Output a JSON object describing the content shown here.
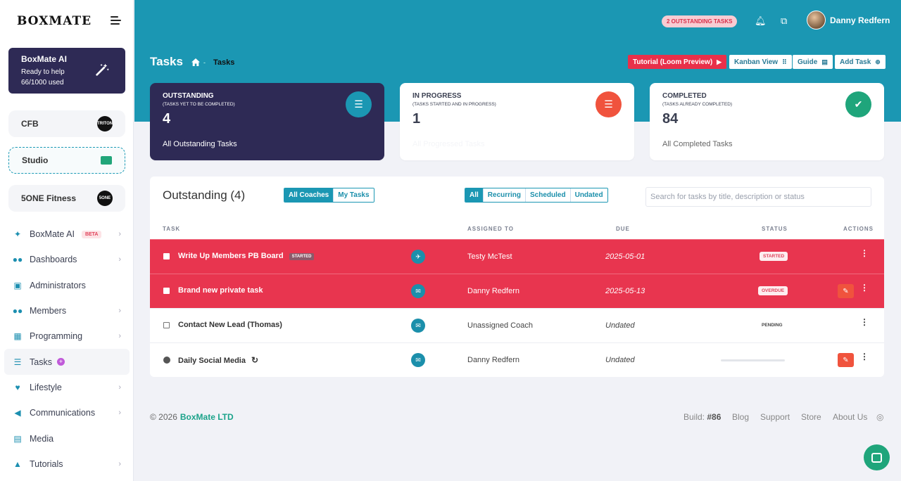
{
  "brand": "BOXMATE",
  "ai_card": {
    "title": "BoxMate AI",
    "line1": "Ready to help",
    "line2": "66/1000 used"
  },
  "gyms": [
    {
      "name": "CFB",
      "logo": "TRITON"
    },
    {
      "name": "Studio"
    },
    {
      "name": "5ONE Fitness",
      "logo": "5ONE"
    }
  ],
  "nav": [
    {
      "label": "BoxMate AI",
      "badge": "BETA",
      "icon": "wand-icon"
    },
    {
      "label": "Dashboards",
      "icon": "users-icon"
    },
    {
      "label": "Administrators",
      "icon": "admin-icon"
    },
    {
      "label": "Members",
      "icon": "members-icon"
    },
    {
      "label": "Programming",
      "icon": "calendar-icon"
    },
    {
      "label": "Tasks",
      "icon": "tasks-icon",
      "plus": "+"
    },
    {
      "label": "Lifestyle",
      "icon": "heart-icon"
    },
    {
      "label": "Communications",
      "icon": "megaphone-icon"
    },
    {
      "label": "Media",
      "icon": "media-icon"
    },
    {
      "label": "Tutorials",
      "icon": "graduation-icon"
    }
  ],
  "header": {
    "alert": "2 OUTSTANDING TASKS",
    "user": "Danny Redfern",
    "title": "Tasks",
    "breadcrumb": "Tasks",
    "buttons": {
      "tutorial": "Tutorial (Loom Preview)",
      "kanban": "Kanban View",
      "guide": "Guide",
      "add": "Add Task"
    }
  },
  "stats": [
    {
      "label": "OUTSTANDING",
      "sub": "(TASKS YET TO BE COMPLETED)",
      "value": "4",
      "foot": "All Outstanding Tasks",
      "color": "#1b97b3"
    },
    {
      "label": "IN PROGRESS",
      "sub": "(TASKS STARTED AND IN PROGRESS)",
      "value": "1",
      "foot": "All Progressed Tasks",
      "color": "#f0533d"
    },
    {
      "label": "COMPLETED",
      "sub": "(TASKS ALREADY COMPLETED)",
      "value": "84",
      "foot": "All Completed Tasks",
      "color": "#1fa57b"
    }
  ],
  "table": {
    "title": "Outstanding (4)",
    "coach_filter": [
      "All Coaches",
      "My Tasks"
    ],
    "type_filter": [
      "All",
      "Recurring",
      "Scheduled",
      "Undated"
    ],
    "search_placeholder": "Search for tasks by title, description or status",
    "headers": {
      "task": "TASK",
      "assigned": "ASSIGNED TO",
      "due": "DUE",
      "status": "STATUS",
      "actions": "ACTIONS"
    },
    "rows": [
      {
        "task": "Write Up Members PB Board",
        "tag": "STARTED",
        "assignee": "Testy McTest",
        "due": "2025-05-01",
        "status": "STARTED"
      },
      {
        "task": "Brand new private task",
        "assignee": "Danny Redfern",
        "due": "2025-05-13",
        "status": "OVERDUE"
      },
      {
        "task": "Contact New Lead (Thomas)",
        "assignee": "Unassigned Coach",
        "due": "Undated",
        "status": "PENDING"
      },
      {
        "task": "Daily Social Media",
        "assignee": "Danny Redfern",
        "due": "Undated",
        "status": ""
      }
    ]
  },
  "footer": {
    "copyright": "© 2026",
    "company": "BoxMate LTD",
    "build_label": "Build:",
    "build": "#86",
    "links": [
      "Blog",
      "Support",
      "Store",
      "About Us"
    ]
  }
}
